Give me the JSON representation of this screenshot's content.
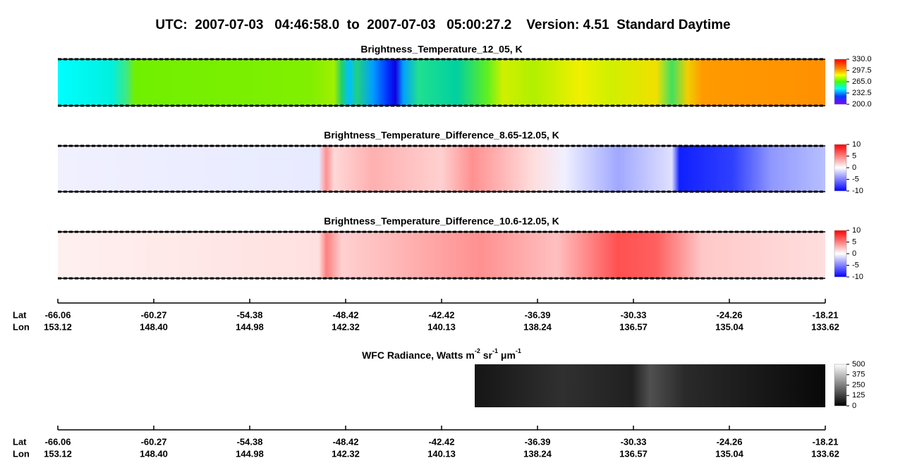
{
  "title": "UTC:  2007-07-03   04:46:58.0  to  2007-07-03   05:00:27.2    Version: 4.51  Standard Daytime",
  "panels": [
    {
      "title": "Brightness_Temperature_12_05, K",
      "colorbar_ticks": [
        {
          "value": 330,
          "label": "330.0"
        },
        {
          "value": 297.5,
          "label": "297.5"
        },
        {
          "value": 265,
          "label": "265.0"
        },
        {
          "value": 232.5,
          "label": "232.5"
        },
        {
          "value": 200,
          "label": "200.0"
        }
      ]
    },
    {
      "title": "Brightness_Temperature_Difference_8.65-12.05, K",
      "colorbar_ticks": [
        10,
        5,
        0,
        -5,
        -10
      ]
    },
    {
      "title": "Brightness_Temperature_Difference_10.6-12.05, K",
      "colorbar_ticks": [
        10,
        5,
        0,
        -5,
        -10
      ]
    },
    {
      "title_parts": [
        "WFC Radiance, Watts m",
        "-2",
        " sr",
        "-1",
        " μm",
        "-1"
      ],
      "colorbar_ticks": [
        500,
        375,
        250,
        125,
        0
      ]
    }
  ],
  "axes": [
    {
      "lat_label": "Lat",
      "lon_label": "Lon",
      "lat": [
        "-66.06",
        "-60.27",
        "-54.38",
        "-48.42",
        "-42.42",
        "-36.39",
        "-30.33",
        "-24.26",
        "-18.21"
      ],
      "lon": [
        "153.12",
        "148.40",
        "144.98",
        "142.32",
        "140.13",
        "138.24",
        "136.57",
        "135.04",
        "133.62"
      ]
    },
    {
      "lat_label": "Lat",
      "lon_label": "Lon",
      "lat": [
        "-66.06",
        "-60.27",
        "-54.38",
        "-48.42",
        "-42.42",
        "-36.39",
        "-30.33",
        "-24.26",
        "-18.21"
      ],
      "lon": [
        "153.12",
        "148.40",
        "144.98",
        "142.32",
        "140.13",
        "138.24",
        "136.57",
        "135.04",
        "133.62"
      ]
    }
  ]
}
